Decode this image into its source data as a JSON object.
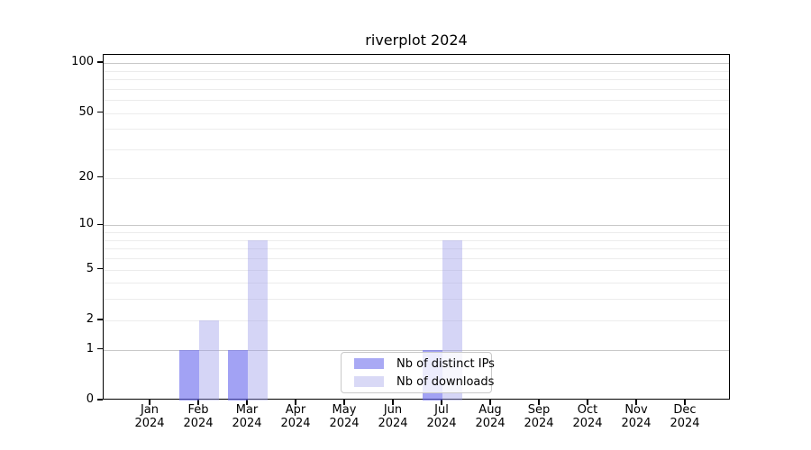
{
  "chart_data": {
    "type": "bar",
    "title": "riverplot 2024",
    "categories": [
      "Jan 2024",
      "Feb 2024",
      "Mar 2024",
      "Apr 2024",
      "May 2024",
      "Jun 2024",
      "Jul 2024",
      "Aug 2024",
      "Sep 2024",
      "Oct 2024",
      "Nov 2024",
      "Dec 2024"
    ],
    "series": [
      {
        "name": "Nb of distinct IPs",
        "values": [
          0,
          1,
          1,
          0,
          0,
          0,
          1,
          0,
          0,
          0,
          0,
          0
        ],
        "color": "#a9a9f4",
        "fill": "rgba(105,105,238,0.62)"
      },
      {
        "name": "Nb of downloads",
        "values": [
          0,
          2,
          8,
          0,
          0,
          0,
          8,
          0,
          0,
          0,
          0,
          0
        ],
        "color": "#d9d9f6",
        "fill": "rgba(155,155,233,0.42)"
      }
    ],
    "y_axis": {
      "scale": "log1p",
      "tick_labels": [
        0,
        1,
        2,
        5,
        10,
        20,
        50,
        100
      ],
      "major_gridlines": [
        1,
        10,
        100
      ],
      "minor_gridlines": [
        2,
        3,
        4,
        5,
        6,
        7,
        8,
        9,
        20,
        30,
        40,
        50,
        60,
        70,
        80,
        90
      ],
      "ylim": [
        0,
        112
      ],
      "grid": "on"
    },
    "x_axis": {
      "label": "",
      "tick_labels_two_line": true
    },
    "legend": {
      "position": "bottom-center",
      "entries": [
        "Nb of distinct IPs",
        "Nb of downloads"
      ]
    }
  },
  "colors": {
    "background": "#ffffff",
    "spine": "#000000",
    "major_grid": "#c9c9c9",
    "minor_grid": "#ececec",
    "bar_distinct_ips": "#a9a9f4",
    "bar_downloads": "#d9d9f6",
    "text": "#000000"
  }
}
